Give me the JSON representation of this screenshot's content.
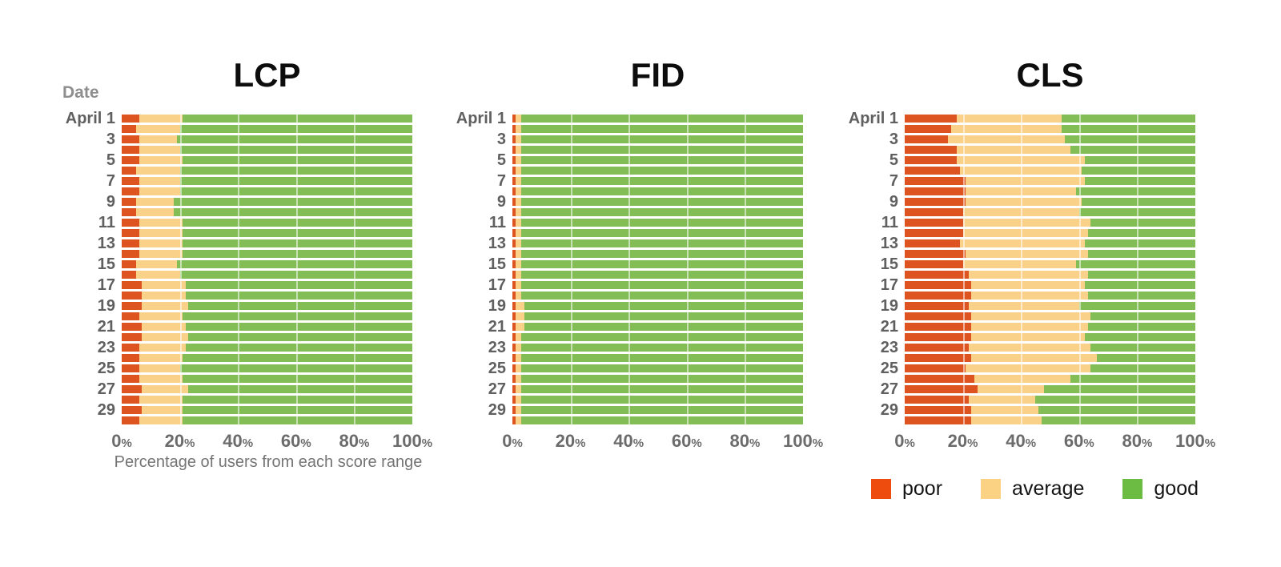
{
  "page": {
    "background": "#ffffff"
  },
  "date_header": "Date",
  "axis": {
    "tick_labels": [
      "0",
      "20",
      "40",
      "60",
      "80",
      "100"
    ],
    "tick_suffix": "%",
    "x_title": "Percentage of users from each score range"
  },
  "legend": {
    "items": [
      {
        "label": "poor",
        "color_key": "poor"
      },
      {
        "label": "average",
        "color_key": "average"
      },
      {
        "label": "good",
        "color_key": "good"
      }
    ]
  },
  "colors": {
    "poor": "#dd5420",
    "average": "#fad189",
    "good": "#83bd55",
    "legend_poor": "#ee4c0e",
    "legend_average": "#fbd283",
    "legend_good": "#6cbc43",
    "grid": "rgba(255,255,255,0.55)",
    "title_text": "#0d0d0d",
    "axis_text": "#6b6b6b"
  },
  "chart_data": [
    {
      "type": "bar",
      "stacked": true,
      "orientation": "horizontal",
      "title": "LCP",
      "xlabel": "Percentage of users from each score range",
      "ylabel": "Date",
      "xlim": [
        0,
        100
      ],
      "grid": true,
      "x_tick_labels": [
        "0%",
        "20%",
        "40%",
        "60%",
        "80%",
        "100%"
      ],
      "categories": [
        1,
        2,
        3,
        4,
        5,
        6,
        7,
        8,
        9,
        10,
        11,
        12,
        13,
        14,
        15,
        16,
        17,
        18,
        19,
        20,
        21,
        22,
        23,
        24,
        25,
        26,
        27,
        28,
        29,
        30
      ],
      "row_labels": [
        "April 1",
        "",
        "3",
        "",
        "5",
        "",
        "7",
        "",
        "9",
        "",
        "11",
        "",
        "13",
        "",
        "15",
        "",
        "17",
        "",
        "19",
        "",
        "21",
        "",
        "23",
        "",
        "25",
        "",
        "27",
        "",
        "29",
        ""
      ],
      "series": [
        {
          "name": "poor",
          "values": [
            6,
            5,
            6,
            6,
            6,
            5,
            6,
            6,
            5,
            5,
            6,
            6,
            6,
            6,
            5,
            5,
            7,
            7,
            7,
            6,
            7,
            7,
            6,
            6,
            6,
            6,
            7,
            6,
            7,
            6
          ]
        },
        {
          "name": "average",
          "values": [
            15,
            15,
            13,
            14,
            15,
            15,
            14,
            14,
            13,
            13,
            15,
            15,
            15,
            15,
            14,
            15,
            15,
            15,
            16,
            15,
            15,
            16,
            16,
            15,
            14,
            15,
            16,
            15,
            14,
            15
          ]
        },
        {
          "name": "good",
          "values": [
            79,
            80,
            81,
            80,
            79,
            80,
            80,
            80,
            82,
            82,
            79,
            79,
            79,
            79,
            81,
            80,
            78,
            78,
            77,
            79,
            78,
            77,
            78,
            79,
            80,
            79,
            77,
            79,
            79,
            79
          ]
        }
      ]
    },
    {
      "type": "bar",
      "stacked": true,
      "orientation": "horizontal",
      "title": "FID",
      "xlabel": "",
      "ylabel": "Date",
      "xlim": [
        0,
        100
      ],
      "grid": true,
      "x_tick_labels": [
        "0%",
        "20%",
        "40%",
        "60%",
        "80%",
        "100%"
      ],
      "categories": [
        1,
        2,
        3,
        4,
        5,
        6,
        7,
        8,
        9,
        10,
        11,
        12,
        13,
        14,
        15,
        16,
        17,
        18,
        19,
        20,
        21,
        22,
        23,
        24,
        25,
        26,
        27,
        28,
        29,
        30
      ],
      "row_labels": [
        "April 1",
        "",
        "3",
        "",
        "5",
        "",
        "7",
        "",
        "9",
        "",
        "11",
        "",
        "13",
        "",
        "15",
        "",
        "17",
        "",
        "19",
        "",
        "21",
        "",
        "23",
        "",
        "25",
        "",
        "27",
        "",
        "29",
        ""
      ],
      "series": [
        {
          "name": "poor",
          "values": [
            1,
            1,
            1,
            1,
            1,
            1,
            1,
            1,
            1,
            1,
            1,
            1,
            1,
            1,
            1,
            1,
            1,
            1,
            1,
            1,
            1,
            1,
            1,
            1,
            1,
            1,
            1,
            1,
            1,
            1
          ]
        },
        {
          "name": "average",
          "values": [
            2,
            2,
            2,
            2,
            2,
            2,
            2,
            2,
            2,
            2,
            2,
            2,
            2,
            2,
            2,
            2,
            2,
            2,
            3,
            3,
            3,
            2,
            2,
            2,
            2,
            2,
            2,
            2,
            2,
            2
          ]
        },
        {
          "name": "good",
          "values": [
            97,
            97,
            97,
            97,
            97,
            97,
            97,
            97,
            97,
            97,
            97,
            97,
            97,
            97,
            97,
            97,
            97,
            97,
            96,
            96,
            96,
            97,
            97,
            97,
            97,
            97,
            97,
            97,
            97,
            97
          ]
        }
      ]
    },
    {
      "type": "bar",
      "stacked": true,
      "orientation": "horizontal",
      "title": "CLS",
      "xlabel": "",
      "ylabel": "Date",
      "xlim": [
        0,
        100
      ],
      "grid": true,
      "x_tick_labels": [
        "0%",
        "20%",
        "40%",
        "60%",
        "80%",
        "100%"
      ],
      "categories": [
        1,
        2,
        3,
        4,
        5,
        6,
        7,
        8,
        9,
        10,
        11,
        12,
        13,
        14,
        15,
        16,
        17,
        18,
        19,
        20,
        21,
        22,
        23,
        24,
        25,
        26,
        27,
        28,
        29,
        30
      ],
      "row_labels": [
        "April 1",
        "",
        "3",
        "",
        "5",
        "",
        "7",
        "",
        "9",
        "",
        "11",
        "",
        "13",
        "",
        "15",
        "",
        "17",
        "",
        "19",
        "",
        "21",
        "",
        "23",
        "",
        "25",
        "",
        "27",
        "",
        "29",
        ""
      ],
      "series": [
        {
          "name": "poor",
          "values": [
            18,
            16,
            15,
            18,
            18,
            19,
            21,
            21,
            21,
            20,
            20,
            20,
            19,
            21,
            20,
            22,
            23,
            23,
            22,
            23,
            23,
            23,
            22,
            23,
            21,
            24,
            25,
            22,
            23,
            23
          ]
        },
        {
          "name": "average",
          "values": [
            36,
            38,
            40,
            39,
            44,
            42,
            41,
            38,
            40,
            40,
            44,
            43,
            43,
            42,
            39,
            41,
            39,
            40,
            38,
            41,
            40,
            39,
            42,
            43,
            43,
            33,
            23,
            23,
            23,
            24
          ]
        },
        {
          "name": "good",
          "values": [
            46,
            46,
            45,
            43,
            38,
            39,
            38,
            41,
            39,
            40,
            36,
            37,
            38,
            37,
            41,
            37,
            38,
            37,
            40,
            36,
            37,
            38,
            36,
            34,
            36,
            43,
            52,
            55,
            54,
            53
          ]
        }
      ]
    }
  ]
}
